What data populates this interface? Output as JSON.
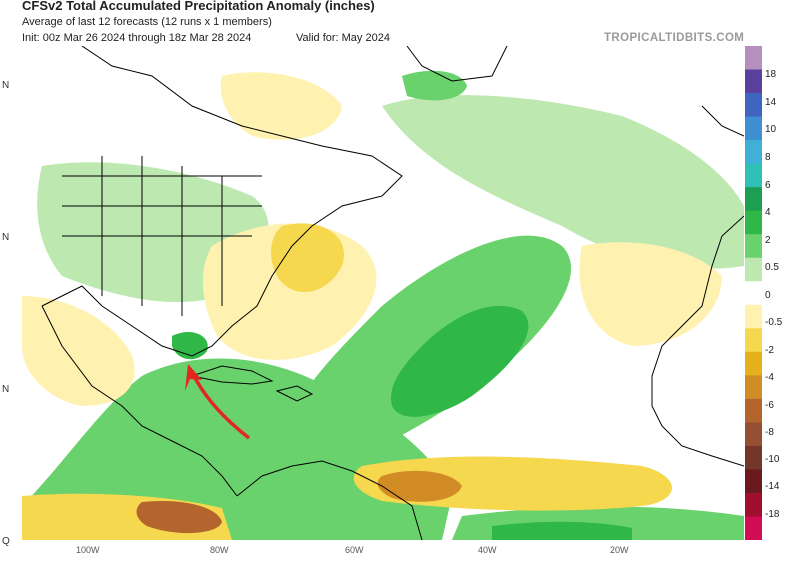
{
  "header": {
    "title": "CFSv2 Total Accumulated Precipitation Anomaly (inches)",
    "subtitle": "Average of last 12 forecasts (12 runs x 1 members)",
    "init": "Init: 00z Mar 26 2024 through 18z Mar 28 2024",
    "valid": "Valid for: May 2024",
    "brand": "TROPICALTIDBITS.COM"
  },
  "axes": {
    "lat_labels": [
      "N",
      "N",
      "N",
      "Q"
    ],
    "lon_labels": [
      "100W",
      "80W",
      "60W",
      "40W",
      "20W"
    ]
  },
  "colorbar": {
    "labels": [
      "18",
      "14",
      "10",
      "8",
      "6",
      "4",
      "2",
      "0.5",
      "0",
      "-0.5",
      "-2",
      "-4",
      "-6",
      "-8",
      "-10",
      "-14",
      "-18"
    ],
    "colors": [
      "#b48fc0",
      "#5b3f9c",
      "#3e66c0",
      "#3f8fd2",
      "#3fb0d8",
      "#2fc0b8",
      "#1e9e52",
      "#2fb848",
      "#6ad26c",
      "#bde9b1",
      "#ffffff",
      "#fff2b0",
      "#f5d84e",
      "#e6b01c",
      "#d28c25",
      "#b4652d",
      "#955033",
      "#733628",
      "#6a1a1e",
      "#a0102e",
      "#d20c55"
    ]
  },
  "annotation": {
    "name": "red-arrow",
    "color": "#e2271f"
  }
}
